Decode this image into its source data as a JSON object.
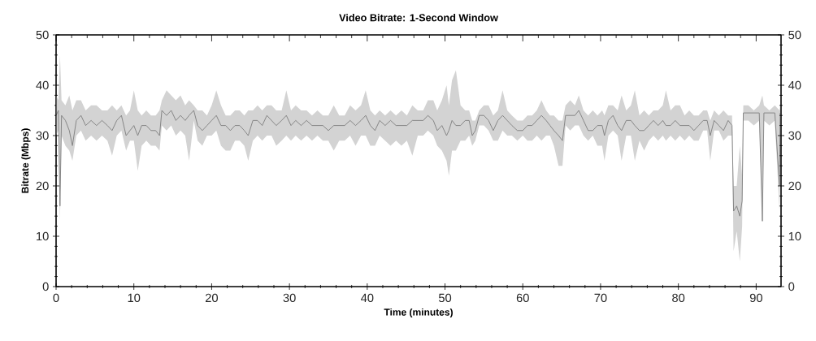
{
  "chart_data": {
    "type": "line",
    "title": "Video Bitrate: 1-Second Window",
    "xlabel": "Time (minutes)",
    "ylabel": "Bitrate (Mbps)",
    "xlim": [
      0,
      93.2
    ],
    "xticks": [
      0,
      10,
      20,
      30,
      40,
      50,
      60,
      70,
      80,
      90
    ],
    "ylim": [
      0,
      50
    ],
    "yticks": [
      0,
      10,
      20,
      30,
      40,
      50
    ],
    "y2lim": [
      0,
      50
    ],
    "y2ticks": [
      0,
      10,
      20,
      30,
      40,
      50
    ],
    "x": [
      0,
      0.3,
      0.5,
      0.7,
      1.2,
      1.7,
      2.1,
      2.6,
      3.2,
      3.8,
      4.5,
      5.2,
      5.9,
      6.6,
      7.2,
      7.8,
      8.4,
      9.0,
      9.5,
      10.0,
      10.5,
      11.0,
      11.6,
      12.2,
      12.8,
      13.3,
      13.6,
      14.2,
      14.8,
      15.4,
      16.0,
      16.6,
      17.1,
      17.7,
      18.2,
      18.8,
      19.4,
      20.0,
      20.6,
      21.2,
      21.8,
      22.4,
      23.0,
      23.6,
      24.2,
      24.7,
      25.3,
      25.9,
      26.5,
      27.1,
      27.7,
      28.3,
      29.0,
      29.6,
      30.2,
      30.8,
      31.5,
      32.2,
      32.9,
      33.6,
      34.3,
      35.0,
      35.7,
      36.4,
      37.1,
      37.8,
      38.5,
      39.2,
      39.8,
      40.4,
      41.0,
      41.6,
      42.3,
      43.0,
      43.7,
      44.4,
      45.1,
      45.8,
      46.5,
      47.2,
      47.8,
      48.5,
      49.0,
      49.6,
      50.2,
      50.5,
      50.9,
      51.4,
      52.0,
      52.6,
      53.1,
      53.5,
      53.9,
      54.4,
      55.0,
      55.6,
      56.2,
      56.8,
      57.4,
      58.0,
      58.6,
      59.3,
      60.0,
      60.6,
      61.2,
      61.8,
      62.4,
      63.0,
      63.5,
      64.0,
      64.6,
      65.1,
      65.5,
      66.1,
      66.7,
      67.2,
      67.8,
      68.4,
      69.0,
      69.6,
      70.2,
      70.5,
      71.0,
      71.6,
      72.2,
      72.7,
      73.3,
      73.9,
      74.4,
      75.0,
      75.6,
      76.2,
      76.8,
      77.4,
      78.0,
      78.4,
      79.0,
      79.6,
      80.2,
      80.8,
      81.4,
      82.0,
      82.6,
      83.2,
      83.7,
      84.1,
      84.6,
      85.2,
      85.8,
      86.4,
      86.9,
      87.1,
      87.5,
      87.9,
      88.2,
      88.35,
      89.0,
      89.7,
      90.4,
      90.8,
      91.0,
      91.7,
      92.4,
      93.0,
      93.1
    ],
    "series": [
      {
        "color": "#808080",
        "values": [
          34,
          35,
          16,
          34,
          33,
          31,
          28,
          33,
          34,
          32,
          33,
          32,
          33,
          32,
          31,
          33,
          34,
          30,
          31,
          32,
          30,
          32,
          32,
          31,
          31,
          30,
          35,
          34,
          35,
          33,
          34,
          33,
          34,
          35,
          32,
          31,
          32,
          33,
          34,
          32,
          32,
          31,
          32,
          32,
          31,
          30,
          33,
          33,
          32,
          34,
          33,
          32,
          33,
          34,
          32,
          33,
          32,
          33,
          32,
          32,
          32,
          31,
          32,
          32,
          32,
          33,
          32,
          33,
          34,
          32,
          31,
          33,
          32,
          33,
          32,
          32,
          32,
          33,
          33,
          33,
          34,
          33,
          31,
          32,
          30,
          31,
          33,
          32,
          32,
          33,
          33,
          30,
          31,
          34,
          34,
          33,
          31,
          33,
          34,
          33,
          32,
          31,
          31,
          32,
          32,
          33,
          34,
          33,
          32,
          31,
          30,
          29,
          34,
          34,
          34,
          35,
          33,
          31,
          31,
          32,
          32,
          30,
          33,
          34,
          32,
          31,
          33,
          33,
          32,
          31,
          31,
          32,
          33,
          32,
          33,
          32,
          32,
          33,
          32,
          32,
          32,
          31,
          32,
          33,
          33,
          30,
          33,
          32,
          31,
          33,
          32,
          15,
          16,
          14,
          17,
          34.5,
          34.5,
          34.5,
          34.5,
          13,
          34.5,
          34.5,
          34.5,
          20,
          34.5
        ],
        "lower": [
          30,
          31,
          13,
          30,
          28,
          27,
          25,
          30,
          31,
          29,
          30,
          29,
          30,
          29,
          26,
          30,
          31,
          27,
          29,
          29,
          23,
          28,
          29,
          28,
          28,
          27,
          32,
          31,
          32,
          30,
          31,
          30,
          25,
          33,
          29,
          28,
          30,
          30,
          31,
          28,
          27,
          27,
          29,
          29,
          28,
          25,
          29,
          30,
          29,
          30,
          30,
          28,
          29,
          30,
          29,
          30,
          29,
          30,
          29,
          30,
          29,
          29,
          27,
          29,
          29,
          30,
          28,
          30,
          30,
          28,
          28,
          30,
          29,
          28,
          29,
          28,
          29,
          26,
          30,
          30,
          31,
          30,
          28,
          27,
          25,
          22,
          27,
          27,
          29,
          29,
          30,
          28,
          29,
          32,
          32,
          31,
          29,
          29,
          31,
          30,
          30,
          29,
          30,
          29,
          29,
          30,
          29,
          30,
          30,
          28,
          24,
          24,
          32,
          31,
          32,
          32,
          30,
          29,
          30,
          28,
          28,
          25,
          30,
          31,
          30,
          25,
          30,
          30,
          25,
          29,
          27,
          29,
          30,
          29,
          30,
          29,
          30,
          29,
          30,
          29,
          30,
          29,
          29,
          31,
          31,
          25,
          31,
          31,
          29,
          30,
          30,
          7,
          11,
          5,
          12,
          33,
          33,
          32,
          33,
          13,
          33,
          32,
          33,
          15,
          33
        ],
        "upper": [
          38,
          37,
          46,
          37,
          36,
          38,
          35,
          37,
          37,
          35,
          36,
          36,
          35,
          35,
          36,
          35,
          36,
          34,
          35,
          39,
          35,
          34,
          35,
          34,
          34,
          35,
          37,
          39,
          38,
          37,
          38,
          36,
          37,
          36,
          35,
          35,
          34,
          36,
          39,
          36,
          34,
          34,
          35,
          35,
          34,
          35,
          35,
          36,
          35,
          36,
          36,
          35,
          35,
          39,
          35,
          36,
          35,
          35,
          34,
          35,
          34,
          34,
          36,
          34,
          34,
          36,
          35,
          36,
          39,
          35,
          34,
          35,
          34,
          35,
          34,
          35,
          34,
          36,
          35,
          35,
          37,
          37,
          35,
          37,
          40,
          36,
          41,
          43,
          36,
          35,
          35,
          33,
          33,
          35,
          36,
          36,
          34,
          35,
          39,
          35,
          34,
          33,
          33,
          34,
          34,
          35,
          37,
          35,
          34,
          34,
          33,
          33,
          36,
          37,
          36,
          38,
          35,
          34,
          35,
          34,
          35,
          34,
          36,
          36,
          35,
          38,
          35,
          36,
          39,
          34,
          35,
          34,
          35,
          35,
          36,
          39,
          35,
          36,
          36,
          34,
          35,
          34,
          34,
          35,
          35,
          33,
          35,
          34,
          35,
          34,
          34,
          20,
          20,
          28,
          22,
          36,
          36,
          35,
          36,
          38,
          36,
          35,
          36,
          35,
          36
        ]
      }
    ]
  }
}
